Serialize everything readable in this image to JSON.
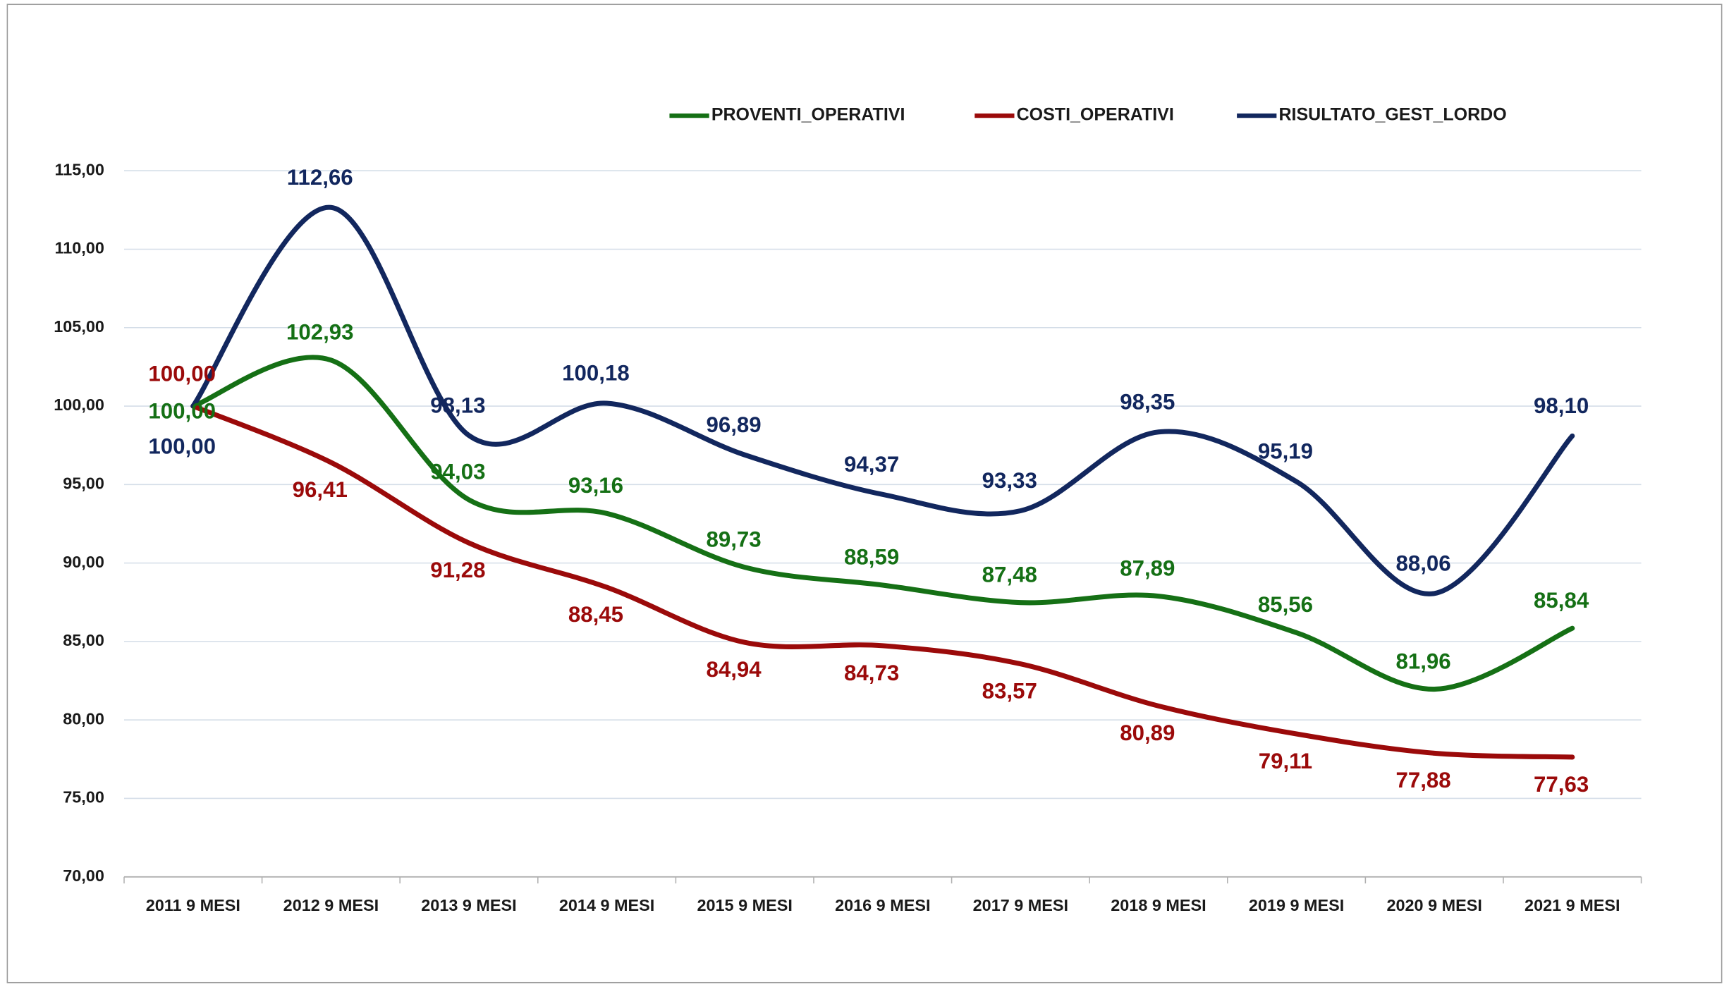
{
  "chart_data": {
    "type": "line",
    "categories": [
      "2011 9 MESI",
      "2012 9 MESI",
      "2013 9 MESI",
      "2014 9 MESI",
      "2015 9 MESI",
      "2016 9 MESI",
      "2017 9 MESI",
      "2018 9 MESI",
      "2019 9 MESI",
      "2020 9 MESI",
      "2021 9 MESI"
    ],
    "series": [
      {
        "name": "PROVENTI_OPERATIVI",
        "color": "#157015",
        "values": [
          100.0,
          102.93,
          94.03,
          93.16,
          89.73,
          88.59,
          87.48,
          87.89,
          85.56,
          81.96,
          85.84
        ],
        "value_labels": [
          "100,00",
          "102,93",
          "94,03",
          "93,16",
          "89,73",
          "88,59",
          "87,48",
          "87,89",
          "85,56",
          "81,96",
          "85,84"
        ]
      },
      {
        "name": "COSTI_OPERATIVI",
        "color": "#9b0a0a",
        "values": [
          100.0,
          96.41,
          91.28,
          88.45,
          84.94,
          84.73,
          83.57,
          80.89,
          79.11,
          77.88,
          77.63
        ],
        "value_labels": [
          "100,00",
          "96,41",
          "91,28",
          "88,45",
          "84,94",
          "84,73",
          "83,57",
          "80,89",
          "79,11",
          "77,88",
          "77,63"
        ]
      },
      {
        "name": "RISULTATO_GEST_LORDO",
        "color": "#12275e",
        "values": [
          100.0,
          112.66,
          98.13,
          100.18,
          96.89,
          94.37,
          93.33,
          98.35,
          95.19,
          88.06,
          98.1
        ],
        "value_labels": [
          "100,00",
          "112,66",
          "98,13",
          "100,18",
          "96,89",
          "94,37",
          "93,33",
          "98,35",
          "95,19",
          "88,06",
          "98,10"
        ]
      }
    ],
    "ylim": [
      70,
      115
    ],
    "yticks": [
      {
        "value": 70,
        "label": "70,00"
      },
      {
        "value": 75,
        "label": "75,00"
      },
      {
        "value": 80,
        "label": "80,00"
      },
      {
        "value": 85,
        "label": "85,00"
      },
      {
        "value": 90,
        "label": "90,00"
      },
      {
        "value": 95,
        "label": "95,00"
      },
      {
        "value": 100,
        "label": "100,00"
      },
      {
        "value": 105,
        "label": "105,00"
      },
      {
        "value": 110,
        "label": "110,00"
      },
      {
        "value": 115,
        "label": "115,00"
      }
    ],
    "grid": true,
    "smooth": true,
    "legend": "top"
  }
}
